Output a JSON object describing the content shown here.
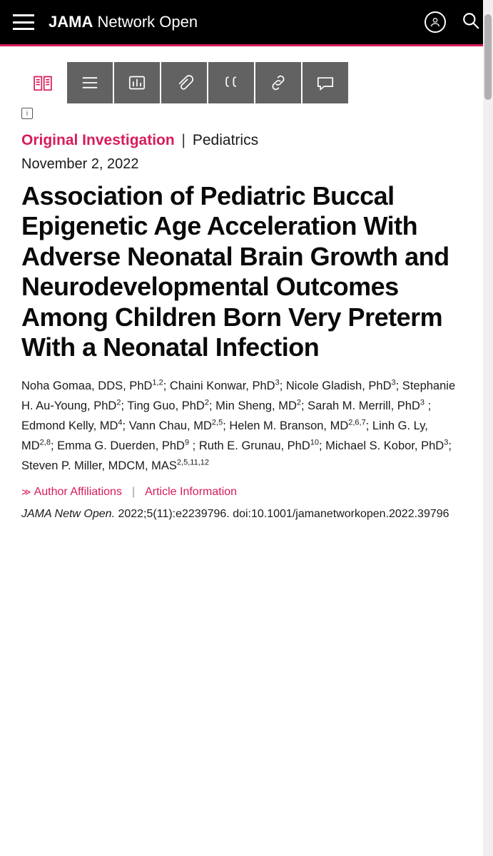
{
  "header": {
    "brand_bold": "JAMA",
    "brand_rest": " Network Open"
  },
  "category": {
    "type": "Original Investigation",
    "section": "Pediatrics"
  },
  "pub_date": "November 2, 2022",
  "title": "Association of Pediatric Buccal Epigenetic Age Acceleration With Ad­verse Neonatal Brain Growth and Neurode­velopmental Outcomes Among Children Born Very Preterm With a Neonatal Infection",
  "authors_html": "Noha Gomaa, DDS, PhD<sup>1,2</sup>; Chaini Konwar, PhD<sup>3</sup>; Nicole Gladish, PhD<sup>3</sup>; Stephanie H. Au-Young, PhD<sup>2</sup>; Ting Guo, PhD<sup>2</sup>; Min Sheng, MD<sup>2</sup>; Sarah M. Merrill, PhD<sup>3</sup> ; Edmond Kelly, MD<sup>4</sup>; Vann Chau, MD<sup>2,5</sup>; Helen M. Bran­son, MD<sup>2,6,7</sup>; Linh G. Ly, MD<sup>2,8</sup>; Emma G. Duerden, PhD<sup>9</sup> ; Ruth E. Grunau, PhD<sup>10</sup>; Michael S. Kobor, PhD<sup>3</sup>; Steven P. Miller, MDCM, MAS<sup>2,5,11,12</sup>",
  "meta": {
    "affiliations": "Author Affiliations",
    "info": "Article Information"
  },
  "citation": {
    "journal": "JAMA Netw Open.",
    "details": " 2022;5(11):e2239796. doi:10.1001/ja­manetworkopen.2022.39796"
  },
  "colors": {
    "accent": "#d71b5b",
    "header_bg": "#000000",
    "tool_bg": "#626262"
  }
}
